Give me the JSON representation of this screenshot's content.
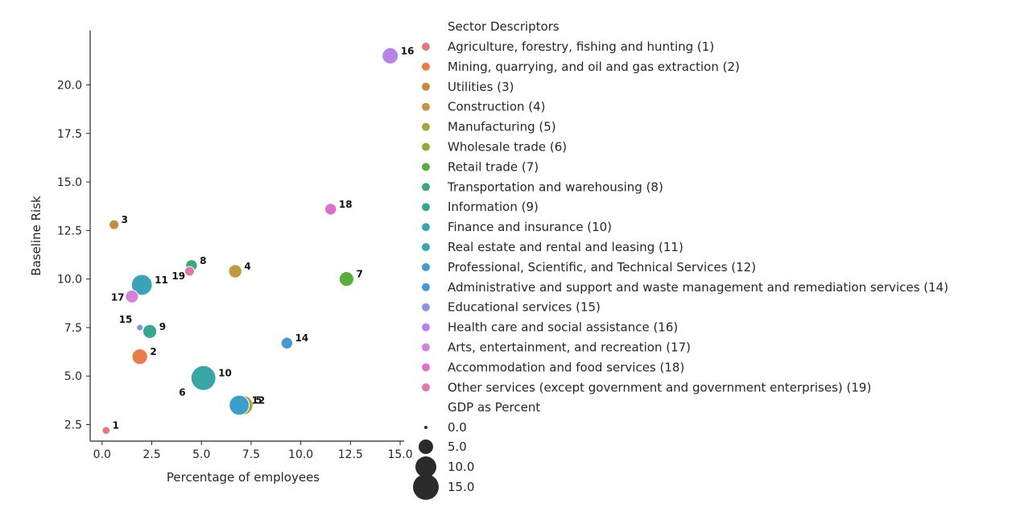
{
  "chart_data": {
    "type": "scatter",
    "title": "",
    "xlabel": "Percentage of employees",
    "ylabel": "Baseline Risk",
    "xlim": [
      -0.6,
      15.2
    ],
    "ylim": [
      1.65,
      22.8
    ],
    "xticks": [
      "0.0",
      "2.5",
      "5.0",
      "7.5",
      "10.0",
      "12.5",
      "15.0"
    ],
    "yticks": [
      "2.5",
      "5.0",
      "7.5",
      "10.0",
      "12.5",
      "15.0",
      "17.5",
      "20.0"
    ],
    "grid": false,
    "legend_placement": "right",
    "hue_title": "Sector Descriptors",
    "size_title": "GDP as Percent",
    "size_legend": [
      {
        "label": "0.0",
        "value": 0.0
      },
      {
        "label": "5.0",
        "value": 5.0
      },
      {
        "label": "10.0",
        "value": 10.0
      },
      {
        "label": "15.0",
        "value": 15.0
      }
    ],
    "series": [
      {
        "name": "Agriculture, forestry, fishing and hunting (1)",
        "label": "1",
        "color": "#e8757b",
        "x": 0.2,
        "y": 2.2,
        "size": 0.9
      },
      {
        "name": "Mining, quarrying, and oil and gas extraction (2)",
        "label": "2",
        "color": "#ec7a48",
        "x": 1.9,
        "y": 6.0,
        "size": 6.5
      },
      {
        "name": "Utilities (3)",
        "label": "3",
        "color": "#c88a3b",
        "x": 0.6,
        "y": 12.8,
        "size": 1.8
      },
      {
        "name": "Construction (4)",
        "label": "4",
        "color": "#bf9a3c",
        "x": 6.7,
        "y": 10.4,
        "size": 4.3
      },
      {
        "name": "Manufacturing (5)",
        "label": "5",
        "color": "#aca33c",
        "x": 7.1,
        "y": 3.5,
        "size": 11.5
      },
      {
        "name": "Wholesale trade (6)",
        "label": "6",
        "color": "#8fab3d",
        "x": 5.0,
        "y": 4.9,
        "size": 6.0
      },
      {
        "name": "Retail trade (7)",
        "label": "7",
        "color": "#56ae3c",
        "x": 12.3,
        "y": 10.0,
        "size": 5.6
      },
      {
        "name": "Transportation and warehousing (8)",
        "label": "8",
        "color": "#3ba877",
        "x": 4.5,
        "y": 10.7,
        "size": 3.0
      },
      {
        "name": "Information (9)",
        "label": "9",
        "color": "#3aa594",
        "x": 2.4,
        "y": 7.3,
        "size": 4.9
      },
      {
        "name": "Finance and insurance (10)",
        "label": "10",
        "color": "#38a5a7",
        "x": 5.1,
        "y": 4.9,
        "size": 20.0
      },
      {
        "name": "Real estate and rental and leasing (11)",
        "label": "11",
        "color": "#3aa3b5",
        "x": 2.0,
        "y": 9.7,
        "size": 13.3
      },
      {
        "name": "Professional, Scientific, and Technical Services (12)",
        "label": "12",
        "color": "#3c9ecb",
        "x": 6.9,
        "y": 3.5,
        "size": 12.0
      },
      {
        "name": "Administrative and support and waste management and remediation services (14)",
        "label": "14",
        "color": "#4698d3",
        "x": 9.3,
        "y": 6.7,
        "size": 3.0
      },
      {
        "name": "Educational services (15)",
        "label": "15",
        "color": "#8c94e0",
        "x": 1.9,
        "y": 7.5,
        "size": 0.5
      },
      {
        "name": "Health care and social assistance (16)",
        "label": "16",
        "color": "#b784e5",
        "x": 14.5,
        "y": 21.5,
        "size": 7.2
      },
      {
        "name": "Arts, entertainment, and recreation (17)",
        "label": "17",
        "color": "#d77ee0",
        "x": 1.5,
        "y": 9.1,
        "size": 4.0
      },
      {
        "name": "Accommodation and food services (18)",
        "label": "18",
        "color": "#de6fcc",
        "x": 11.5,
        "y": 13.6,
        "size": 3.0
      },
      {
        "name": "Other services (except government and government enterprises) (19)",
        "label": "19",
        "color": "#e077b0",
        "x": 4.4,
        "y": 10.4,
        "size": 1.8
      }
    ]
  }
}
